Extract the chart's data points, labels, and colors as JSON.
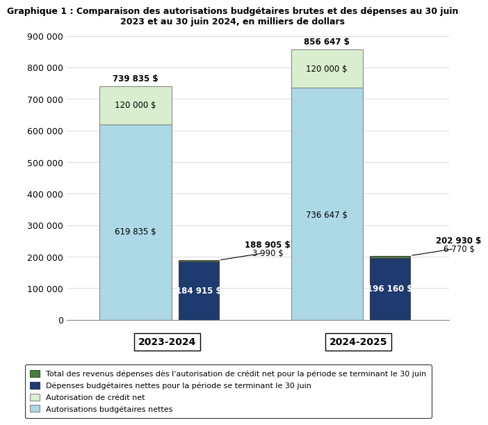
{
  "title": "Graphique 1 : Comparaison des autorisations budgétaires brutes et des dépenses au 30 juin\n2023 et au 30 juin 2024, en milliers de dollars",
  "categories": [
    "2023-2024",
    "2024-2025"
  ],
  "autorisations_budgetaires_nettes": [
    619835,
    736647
  ],
  "autorisation_de_credit_net": [
    120000,
    120000
  ],
  "depenses_budgetaires_nettes": [
    184915,
    196160
  ],
  "total_revenus_depenses": [
    3990,
    6770
  ],
  "bar_labels_total": [
    "739 835 $",
    "856 647 $"
  ],
  "bar_labels_credit": [
    "120 000 $",
    "120 000 $"
  ],
  "bar_labels_budg": [
    "619 835 $",
    "736 647 $"
  ],
  "bar_labels_depenses": [
    "184 915 $",
    "196 160 $"
  ],
  "bar_labels_revenus": [
    "3 990 $",
    "6 770 $"
  ],
  "bar_labels_depenses_total": [
    "188 905 $",
    "202 930 $"
  ],
  "color_autorisations": "#add8e6",
  "color_credit": "#d8eece",
  "color_depenses": "#1f3a6e",
  "color_revenus": "#4a7c3f",
  "ylim": [
    0,
    900000
  ],
  "yticks": [
    0,
    100000,
    200000,
    300000,
    400000,
    500000,
    600000,
    700000,
    800000,
    900000
  ],
  "ytick_labels": [
    "0",
    "100 000",
    "200 000",
    "300 000",
    "400 000",
    "500 000",
    "600 000",
    "700 000",
    "800 000",
    "900 000"
  ],
  "legend_labels": [
    "Total des revenus dépenses dès l'autorisation de crédit net pour la période se terminant le 30 juin",
    "Dépenses budgétaires nettes pour la période se terminant le 30 juin",
    "Autorisation de crédit net",
    "Autorisations budgétaires nettes"
  ],
  "legend_colors": [
    "#4a7c3f",
    "#1f3a6e",
    "#d8eece",
    "#add8e6"
  ],
  "legend_edge_colors": [
    "#2d5a1e",
    "#1f3a6e",
    "#888888",
    "#888888"
  ]
}
